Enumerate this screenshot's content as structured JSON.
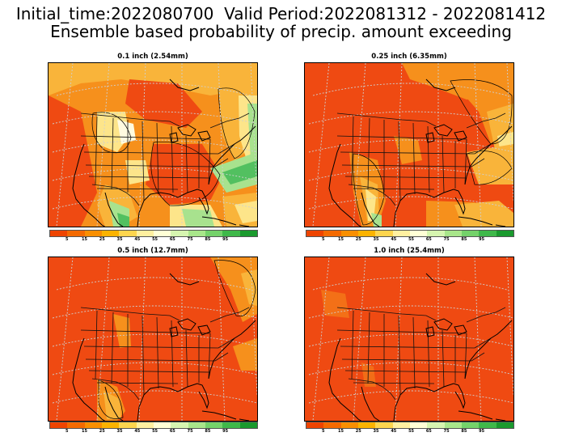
{
  "title": {
    "line1": "Initial_time:2022080700  Valid Period:2022081312 - 2022081412",
    "line2": "Ensemble based probability of precip. amount exceeding"
  },
  "colorbar": {
    "colors": [
      "#ee4400",
      "#f46a00",
      "#f98f00",
      "#fbb300",
      "#fdd54e",
      "#fff0a0",
      "#ffffd6",
      "#d6f5b0",
      "#a8e68a",
      "#74d26a",
      "#3fb84a",
      "#1a9a2e"
    ],
    "labels": [
      "5",
      "15",
      "25",
      "35",
      "45",
      "55",
      "65",
      "75",
      "85",
      "95"
    ]
  },
  "panels": [
    {
      "id": "p1",
      "title": "0.1 inch (2.54mm)"
    },
    {
      "id": "p2",
      "title": "0.25 inch (6.35mm)"
    },
    {
      "id": "p3",
      "title": "0.5 inch (12.7mm)"
    },
    {
      "id": "p4",
      "title": "1.0 inch (25.4mm)"
    }
  ],
  "colors": {
    "base": "#ef4a12",
    "orange": "#f6901c",
    "lightorange": "#f9b43a",
    "yellow": "#fde58a",
    "cream": "#fffbe0",
    "lightgreen": "#a8e28e",
    "green": "#52c060"
  }
}
